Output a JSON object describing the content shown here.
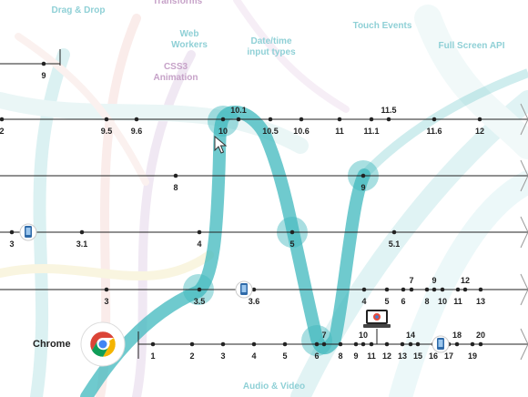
{
  "colors": {
    "teal": "#3fb8bd",
    "feature_label": "#8fd0d6",
    "feature_label_purple": "#c6a2c8",
    "axis": "#222222",
    "background": "#ffffff"
  },
  "features": [
    {
      "id": "drag-drop",
      "label": "Drag & Drop"
    },
    {
      "id": "transforms",
      "label": "Transforms"
    },
    {
      "id": "web-workers",
      "label": "Web\nWorkers"
    },
    {
      "id": "date-time",
      "label": "Date/time\ninput types"
    },
    {
      "id": "touch-events",
      "label": "Touch Events"
    },
    {
      "id": "full-screen",
      "label": "Full Screen API"
    },
    {
      "id": "css3-animation",
      "label": "CSS3\nAnimation"
    },
    {
      "id": "audio-video",
      "label": "Audio & Video"
    }
  ],
  "browsers": {
    "chrome": {
      "name": "Chrome",
      "icon": "chrome-logo-icon"
    }
  },
  "timelines": [
    {
      "id": "row1",
      "versions": [
        {
          "label": "9"
        }
      ]
    },
    {
      "id": "row2",
      "versions": [
        {
          "label": "2"
        },
        {
          "label": "9.5"
        },
        {
          "label": "9.6"
        },
        {
          "label": "10"
        },
        {
          "label": "10.1"
        },
        {
          "label": "10.5"
        },
        {
          "label": "10.6"
        },
        {
          "label": "11"
        },
        {
          "label": "11.1"
        },
        {
          "label": "11.5"
        },
        {
          "label": "11.6"
        },
        {
          "label": "12"
        }
      ]
    },
    {
      "id": "row3",
      "versions": [
        {
          "label": "8"
        },
        {
          "label": "9"
        }
      ]
    },
    {
      "id": "row4",
      "versions": [
        {
          "label": "3"
        },
        {
          "label": "3.1"
        },
        {
          "label": "4"
        },
        {
          "label": "5"
        },
        {
          "label": "5.1"
        }
      ]
    },
    {
      "id": "row5",
      "versions": [
        {
          "label": "3"
        },
        {
          "label": "3.5"
        },
        {
          "label": "3.6"
        },
        {
          "label": "4"
        },
        {
          "label": "5"
        },
        {
          "label": "6"
        },
        {
          "label": "7"
        },
        {
          "label": "8"
        },
        {
          "label": "9"
        },
        {
          "label": "10"
        },
        {
          "label": "11"
        },
        {
          "label": "12"
        },
        {
          "label": "13"
        }
      ]
    },
    {
      "id": "row6-chrome",
      "versions": [
        {
          "label": "1"
        },
        {
          "label": "2"
        },
        {
          "label": "3"
        },
        {
          "label": "4"
        },
        {
          "label": "5"
        },
        {
          "label": "6"
        },
        {
          "label": "7"
        },
        {
          "label": "8"
        },
        {
          "label": "9"
        },
        {
          "label": "10"
        },
        {
          "label": "11"
        },
        {
          "label": "12"
        },
        {
          "label": "13"
        },
        {
          "label": "14"
        },
        {
          "label": "15"
        },
        {
          "label": "16"
        },
        {
          "label": "17"
        },
        {
          "label": "18"
        },
        {
          "label": "19"
        },
        {
          "label": "20"
        }
      ]
    }
  ]
}
